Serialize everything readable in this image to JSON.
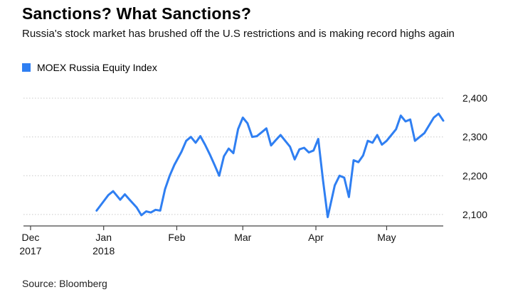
{
  "title": "Sanctions? What Sanctions?",
  "subtitle": "Russia's stock market has brushed off the U.S restrictions and is making record highs again",
  "source": "Source: Bloomberg",
  "colors": {
    "line": "#2f7ff2",
    "grid": "#c9c9c9",
    "axis": "#444444"
  },
  "chart_data": {
    "type": "line",
    "series": [
      {
        "name": "MOEX Russia Equity Index",
        "x": [
          "2017-12-29",
          "2018-01-03",
          "2018-01-05",
          "2018-01-08",
          "2018-01-10",
          "2018-01-12",
          "2018-01-15",
          "2018-01-17",
          "2018-01-19",
          "2018-01-21",
          "2018-01-23",
          "2018-01-25",
          "2018-01-27",
          "2018-01-29",
          "2018-01-31",
          "2018-02-03",
          "2018-02-05",
          "2018-02-07",
          "2018-02-09",
          "2018-02-11",
          "2018-02-13",
          "2018-02-15",
          "2018-02-17",
          "2018-02-19",
          "2018-02-21",
          "2018-02-23",
          "2018-02-25",
          "2018-02-27",
          "2018-03-01",
          "2018-03-03",
          "2018-03-05",
          "2018-03-07",
          "2018-03-09",
          "2018-03-11",
          "2018-03-13",
          "2018-03-15",
          "2018-03-17",
          "2018-03-19",
          "2018-03-21",
          "2018-03-23",
          "2018-03-25",
          "2018-03-27",
          "2018-03-29",
          "2018-03-31",
          "2018-04-02",
          "2018-04-04",
          "2018-04-06",
          "2018-04-09",
          "2018-04-11",
          "2018-04-13",
          "2018-04-15",
          "2018-04-17",
          "2018-04-19",
          "2018-04-21",
          "2018-04-23",
          "2018-04-25",
          "2018-04-27",
          "2018-04-29",
          "2018-05-01",
          "2018-05-03",
          "2018-05-05",
          "2018-05-07",
          "2018-05-09",
          "2018-05-11",
          "2018-05-13",
          "2018-05-15",
          "2018-05-17",
          "2018-05-19",
          "2018-05-21",
          "2018-05-23",
          "2018-05-25"
        ],
        "y": [
          2110,
          2150,
          2160,
          2138,
          2152,
          2138,
          2118,
          2098,
          2108,
          2105,
          2112,
          2110,
          2165,
          2200,
          2228,
          2262,
          2290,
          2300,
          2285,
          2302,
          2280,
          2255,
          2228,
          2200,
          2250,
          2270,
          2258,
          2320,
          2350,
          2335,
          2300,
          2302,
          2312,
          2322,
          2278,
          2292,
          2305,
          2290,
          2275,
          2242,
          2268,
          2272,
          2260,
          2265,
          2295,
          2188,
          2093,
          2175,
          2200,
          2195,
          2145,
          2240,
          2235,
          2252,
          2290,
          2285,
          2305,
          2280,
          2290,
          2305,
          2320,
          2355,
          2340,
          2345,
          2290,
          2300,
          2310,
          2330,
          2350,
          2360,
          2342
        ],
        "color": "#2f7ff2"
      }
    ],
    "x_ticks": [
      {
        "date": "2017-12-01",
        "label": "Dec",
        "sublabel": "2017"
      },
      {
        "date": "2018-01-01",
        "label": "Jan",
        "sublabel": "2018"
      },
      {
        "date": "2018-02-01",
        "label": "Feb",
        "sublabel": ""
      },
      {
        "date": "2018-03-01",
        "label": "Mar",
        "sublabel": ""
      },
      {
        "date": "2018-04-01",
        "label": "Apr",
        "sublabel": ""
      },
      {
        "date": "2018-05-01",
        "label": "May",
        "sublabel": ""
      }
    ],
    "y_ticks": [
      2100,
      2200,
      2300,
      2400
    ],
    "y_tick_labels": [
      "2,100",
      "2,200",
      "2,300",
      "2,400"
    ],
    "ylim": [
      2085,
      2415
    ],
    "xlim": [
      "2017-11-28",
      "2018-05-25"
    ],
    "grid": true,
    "legend_position": "top-left",
    "y_axis_side": "right"
  }
}
